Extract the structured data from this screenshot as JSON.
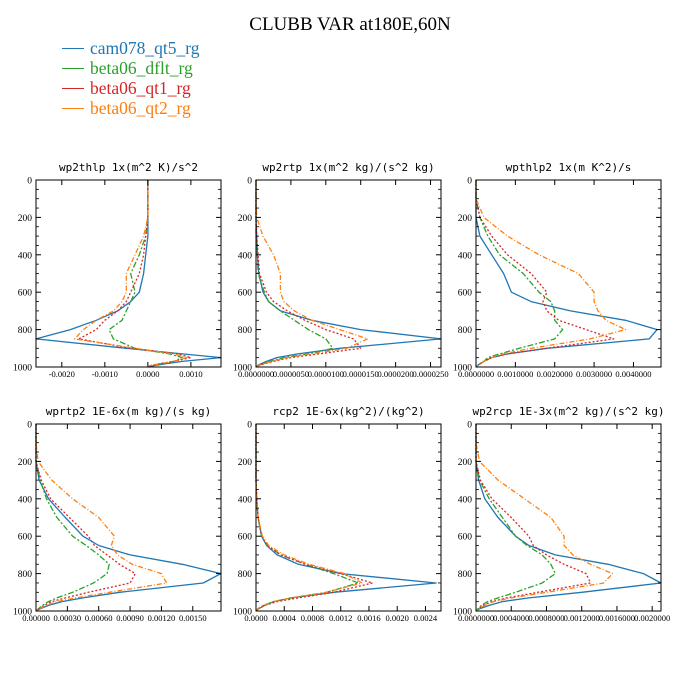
{
  "page": {
    "title": "CLUBB VAR at180E,60N"
  },
  "legend": [
    {
      "label": "cam078_qt5_rg",
      "color": "#1f77b4"
    },
    {
      "label": "beta06_dflt_rg",
      "color": "#2ca02c"
    },
    {
      "label": "beta06_qt1_rg",
      "color": "#d62728"
    },
    {
      "label": "beta06_qt2_rg",
      "color": "#ff7f0e"
    }
  ],
  "chart_data": [
    {
      "type": "line",
      "title": "wp2thlp  1x(m^2 K)/s^2",
      "ylim": [
        1000,
        0
      ],
      "yticks": [
        "0",
        "200",
        "400",
        "600",
        "800",
        "1000"
      ],
      "xlim": [
        -0.0026,
        0.0017
      ],
      "xticks": [
        "-0.0020",
        "-0.0010",
        "0.0000",
        "0.0010"
      ],
      "xtick_values": [
        -0.002,
        -0.001,
        0,
        0.001
      ],
      "y": [
        0,
        100,
        200,
        300,
        400,
        500,
        600,
        650,
        700,
        750,
        800,
        850,
        900,
        930,
        950,
        970,
        990,
        1000
      ],
      "series": [
        {
          "name": "cam078_qt5_rg",
          "values": [
            0,
            0,
            0,
            0,
            -5e-05,
            -0.0001,
            -0.0002,
            -0.0004,
            -0.0007,
            -0.0012,
            -0.0018,
            -0.0026,
            -0.0005,
            0.0008,
            0.0017,
            0.0008,
            0.0002,
            0
          ]
        },
        {
          "name": "beta06_dflt_rg",
          "values": [
            0,
            0,
            0,
            -5e-05,
            -0.0002,
            -0.0004,
            -0.0003,
            -0.0004,
            -0.0005,
            -0.0006,
            -0.0009,
            -0.0008,
            -0.0003,
            0.0005,
            0.0008,
            0.0006,
            0.0001,
            0
          ]
        },
        {
          "name": "beta06_qt1_rg",
          "values": [
            0,
            0,
            0,
            -5e-05,
            -0.0001,
            -0.0002,
            -0.0004,
            -0.0005,
            -0.0007,
            -0.001,
            -0.0012,
            -0.0016,
            -0.0004,
            0.0007,
            0.001,
            0.0006,
            0.0001,
            0
          ]
        },
        {
          "name": "beta06_qt2_rg",
          "values": [
            0,
            0,
            0,
            -0.0001,
            -0.0003,
            -0.0005,
            -0.0005,
            -0.0006,
            -0.0008,
            -0.0012,
            -0.0015,
            -0.0017,
            -0.0003,
            0.0006,
            0.0009,
            0.0006,
            0.0001,
            0
          ]
        }
      ]
    },
    {
      "type": "line",
      "title": "wp2rtp  1x(m^2 kg)/(s^2 kg)",
      "ylim": [
        1000,
        0
      ],
      "yticks": [
        "0",
        "200",
        "400",
        "600",
        "800",
        "1000"
      ],
      "xlim": [
        0,
        2.65e-05
      ],
      "xticks": [
        "0.0000000",
        "0.0000050",
        "0.0000100",
        "0.0000150",
        "0.0000200",
        "0.0000250"
      ],
      "xtick_values": [
        0,
        5e-06,
        1e-05,
        1.5e-05,
        2e-05,
        2.5e-05
      ],
      "y": [
        0,
        100,
        200,
        300,
        400,
        500,
        600,
        650,
        700,
        750,
        800,
        850,
        900,
        930,
        950,
        970,
        990,
        1000
      ],
      "series": [
        {
          "name": "cam078_qt5_rg",
          "values": [
            0,
            0,
            0,
            1e-07,
            2e-07,
            4e-07,
            1e-06,
            1.8e-06,
            3.5e-06,
            8e-06,
            1.5e-05,
            2.65e-05,
            1.2e-05,
            6e-06,
            3e-06,
            1.5e-06,
            3e-07,
            0
          ]
        },
        {
          "name": "beta06_dflt_rg",
          "values": [
            0,
            0,
            0,
            0,
            2e-07,
            3e-07,
            1.2e-06,
            1.8e-06,
            3.5e-06,
            5.5e-06,
            7.5e-06,
            1e-05,
            1.1e-05,
            7.5e-06,
            4e-06,
            2e-06,
            5e-07,
            0
          ]
        },
        {
          "name": "beta06_qt1_rg",
          "values": [
            0,
            0,
            0,
            1e-07,
            3e-07,
            5e-07,
            1.5e-06,
            2.5e-06,
            4.5e-06,
            7e-06,
            1e-05,
            1.4e-05,
            1.5e-05,
            9e-06,
            5e-06,
            2.5e-06,
            5e-07,
            0
          ]
        },
        {
          "name": "beta06_qt2_rg",
          "values": [
            0,
            0,
            1e-07,
            1e-06,
            2.5e-06,
            3.5e-06,
            3.5e-06,
            4e-06,
            5.5e-06,
            8e-06,
            1.2e-05,
            1.6e-05,
            1.3e-05,
            8e-06,
            4.5e-06,
            2.2e-06,
            5e-07,
            0
          ]
        }
      ]
    },
    {
      "type": "line",
      "title": "wpthlp2  1x(m K^2)/s",
      "ylim": [
        1000,
        0
      ],
      "yticks": [
        "0",
        "200",
        "400",
        "600",
        "800",
        "1000"
      ],
      "xlim": [
        0,
        0.0047
      ],
      "xticks": [
        "0.0000000",
        "0.0010000",
        "0.0020000",
        "0.0030000",
        "0.0040000"
      ],
      "xtick_values": [
        0,
        0.001,
        0.002,
        0.003,
        0.004
      ],
      "y": [
        0,
        100,
        200,
        300,
        400,
        500,
        600,
        650,
        700,
        750,
        800,
        850,
        900,
        930,
        950,
        970,
        990,
        1000
      ],
      "series": [
        {
          "name": "cam078_qt5_rg",
          "values": [
            0,
            0,
            0,
            0.0001,
            0.0004,
            0.0007,
            0.0009,
            0.0014,
            0.0024,
            0.0038,
            0.0046,
            0.0044,
            0.0018,
            0.0008,
            0.0004,
            0.0002,
            5e-05,
            0
          ]
        },
        {
          "name": "beta06_dflt_rg",
          "values": [
            0,
            0,
            0.0001,
            0.0003,
            0.0006,
            0.0012,
            0.0016,
            0.0019,
            0.002,
            0.002,
            0.0022,
            0.002,
            0.0011,
            0.0006,
            0.0003,
            0.0002,
            5e-05,
            0
          ]
        },
        {
          "name": "beta06_qt1_rg",
          "values": [
            0,
            0,
            0.0001,
            0.0004,
            0.0008,
            0.0014,
            0.0018,
            0.0017,
            0.0018,
            0.0021,
            0.0028,
            0.0035,
            0.0018,
            0.0008,
            0.0004,
            0.0002,
            5e-05,
            0
          ]
        },
        {
          "name": "beta06_qt2_rg",
          "values": [
            0,
            0,
            0.0002,
            0.0008,
            0.0016,
            0.0026,
            0.003,
            0.003,
            0.0031,
            0.0033,
            0.0038,
            0.0029,
            0.0014,
            0.0007,
            0.0004,
            0.0002,
            5e-05,
            0
          ]
        }
      ]
    },
    {
      "type": "line",
      "title": "wprtp2  1E-6x(m kg)/(s kg)",
      "ylim": [
        1000,
        0
      ],
      "yticks": [
        "0",
        "200",
        "400",
        "600",
        "800",
        "1000"
      ],
      "xlim": [
        0,
        0.00177
      ],
      "xticks": [
        "0.00000",
        "0.00030",
        "0.00060",
        "0.00090",
        "0.00120",
        "0.00150"
      ],
      "xtick_values": [
        0,
        0.0003,
        0.0006,
        0.0009,
        0.0012,
        0.0015
      ],
      "y": [
        0,
        100,
        200,
        300,
        400,
        500,
        600,
        650,
        700,
        750,
        800,
        850,
        900,
        930,
        950,
        970,
        990,
        1000
      ],
      "series": [
        {
          "name": "cam078_qt5_rg",
          "values": [
            0,
            0,
            0,
            3e-05,
            0.00012,
            0.00028,
            0.00045,
            0.0006,
            0.0009,
            0.0014,
            0.00177,
            0.0016,
            0.0008,
            0.00045,
            0.00025,
            0.00012,
            3e-05,
            0
          ]
        },
        {
          "name": "beta06_dflt_rg",
          "values": [
            0,
            0,
            0,
            4e-05,
            0.0001,
            0.0002,
            0.00035,
            0.00048,
            0.0006,
            0.0007,
            0.00068,
            0.00055,
            0.00035,
            0.0002,
            0.00012,
            6e-05,
            2e-05,
            0
          ]
        },
        {
          "name": "beta06_qt1_rg",
          "values": [
            0,
            0,
            0,
            5e-05,
            0.00014,
            0.00032,
            0.0005,
            0.00056,
            0.00068,
            0.0008,
            0.00095,
            0.0009,
            0.0005,
            0.00028,
            0.00015,
            8e-05,
            2e-05,
            0
          ]
        },
        {
          "name": "beta06_qt2_rg",
          "values": [
            0,
            0,
            2e-05,
            0.00015,
            0.00035,
            0.0006,
            0.00075,
            0.00072,
            0.00078,
            0.00092,
            0.0012,
            0.00125,
            0.0007,
            0.00038,
            0.0002,
            0.0001,
            2e-05,
            0
          ]
        }
      ]
    },
    {
      "type": "line",
      "title": "rcp2  1E-6x(kg^2)/(kg^2)",
      "ylim": [
        1000,
        0
      ],
      "yticks": [
        "0",
        "200",
        "400",
        "600",
        "800",
        "1000"
      ],
      "xlim": [
        0,
        0.00262
      ],
      "xticks": [
        "0.0000",
        "0.0004",
        "0.0008",
        "0.0012",
        "0.0016",
        "0.0020",
        "0.0024"
      ],
      "xtick_values": [
        0,
        0.0004,
        0.0008,
        0.0012,
        0.0016,
        0.002,
        0.0024
      ],
      "y": [
        0,
        100,
        200,
        300,
        400,
        500,
        600,
        650,
        700,
        750,
        800,
        850,
        900,
        930,
        950,
        970,
        990,
        1000
      ],
      "series": [
        {
          "name": "cam078_qt5_rg",
          "values": [
            0,
            0,
            0,
            0,
            1e-05,
            3e-05,
            8e-05,
            0.00015,
            0.0003,
            0.0006,
            0.0012,
            0.00255,
            0.0011,
            0.0005,
            0.00025,
            0.00012,
            3e-05,
            0
          ]
        },
        {
          "name": "beta06_dflt_rg",
          "values": [
            0,
            0,
            0,
            0,
            1e-05,
            3e-05,
            8e-05,
            0.00016,
            0.00035,
            0.0007,
            0.0011,
            0.00145,
            0.001,
            0.0005,
            0.00025,
            0.0001,
            2e-05,
            0
          ]
        },
        {
          "name": "beta06_qt1_rg",
          "values": [
            0,
            0,
            0,
            0,
            1e-05,
            3e-05,
            8e-05,
            0.00016,
            0.00035,
            0.0007,
            0.0012,
            0.00165,
            0.0011,
            0.0006,
            0.0003,
            0.00012,
            3e-05,
            0
          ]
        },
        {
          "name": "beta06_qt2_rg",
          "values": [
            0,
            0,
            0,
            0,
            1e-05,
            3e-05,
            9e-05,
            0.00018,
            0.0004,
            0.00075,
            0.00125,
            0.0015,
            0.001,
            0.0005,
            0.00025,
            0.0001,
            2e-05,
            0
          ]
        }
      ]
    },
    {
      "type": "line",
      "title": "wp2rcp  1E-3x(m^2 kg)/(s^2 kg)",
      "ylim": [
        1000,
        0
      ],
      "yticks": [
        "0",
        "200",
        "400",
        "600",
        "800",
        "1000"
      ],
      "xlim": [
        0,
        0.0021
      ],
      "xticks": [
        "0.0000000",
        "0.0004000",
        "0.0008000",
        "0.0012000",
        "0.0016000",
        "0.0020000"
      ],
      "xtick_values": [
        0,
        0.0004,
        0.0008,
        0.0012,
        0.0016,
        0.002
      ],
      "y": [
        0,
        100,
        200,
        300,
        400,
        500,
        600,
        650,
        700,
        750,
        800,
        850,
        900,
        930,
        950,
        970,
        990,
        1000
      ],
      "series": [
        {
          "name": "cam078_qt5_rg",
          "values": [
            0,
            0,
            0,
            3e-05,
            0.0001,
            0.00025,
            0.00045,
            0.0006,
            0.0009,
            0.0015,
            0.0019,
            0.0021,
            0.0012,
            0.0006,
            0.0003,
            0.00015,
            3e-05,
            0
          ]
        },
        {
          "name": "beta06_dflt_rg",
          "values": [
            0,
            0,
            0,
            4e-05,
            0.00015,
            0.0003,
            0.00045,
            0.00058,
            0.00075,
            0.00085,
            0.0009,
            0.00075,
            0.00045,
            0.00025,
            0.00013,
            6e-05,
            2e-05,
            0
          ]
        },
        {
          "name": "beta06_qt1_rg",
          "values": [
            0,
            0,
            0,
            5e-05,
            0.00018,
            0.0004,
            0.0006,
            0.00065,
            0.0008,
            0.001,
            0.00125,
            0.0013,
            0.0007,
            0.00035,
            0.00018,
            8e-05,
            2e-05,
            0
          ]
        },
        {
          "name": "beta06_qt2_rg",
          "values": [
            0,
            0,
            4e-05,
            0.00025,
            0.00055,
            0.00085,
            0.001,
            0.001,
            0.0011,
            0.0013,
            0.00155,
            0.00145,
            0.0008,
            0.0004,
            0.0002,
            0.0001,
            2e-05,
            0
          ]
        }
      ]
    }
  ]
}
